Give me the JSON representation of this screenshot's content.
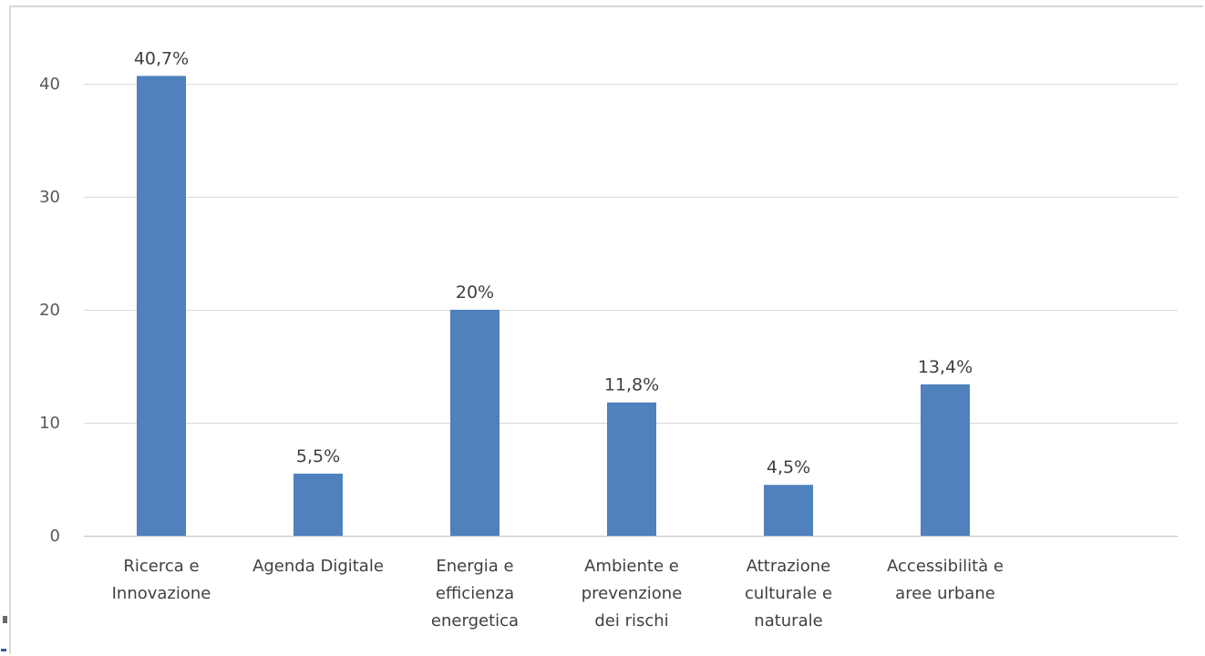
{
  "chart_data": {
    "type": "bar",
    "categories": [
      [
        "Ricerca e",
        "Innovazione"
      ],
      [
        "Agenda Digitale"
      ],
      [
        "Energia e",
        "efficienza",
        "energetica"
      ],
      [
        "Ambiente e",
        "prevenzione",
        "dei rischi"
      ],
      [
        "Attrazione",
        "culturale e",
        "naturale"
      ],
      [
        "Accessibilità e",
        "aree urbane"
      ]
    ],
    "values": [
      40.7,
      5.5,
      20,
      11.8,
      4.5,
      13.4
    ],
    "data_labels": [
      "40,7%",
      "5,5%",
      "20%",
      "11,8%",
      "4,5%",
      "13,4%"
    ],
    "yticks": [
      0,
      10,
      20,
      30,
      40
    ],
    "ylim": [
      0,
      40
    ],
    "grid": true,
    "bar_color": "#4f81bd",
    "title": "",
    "xlabel": "",
    "ylabel": ""
  }
}
